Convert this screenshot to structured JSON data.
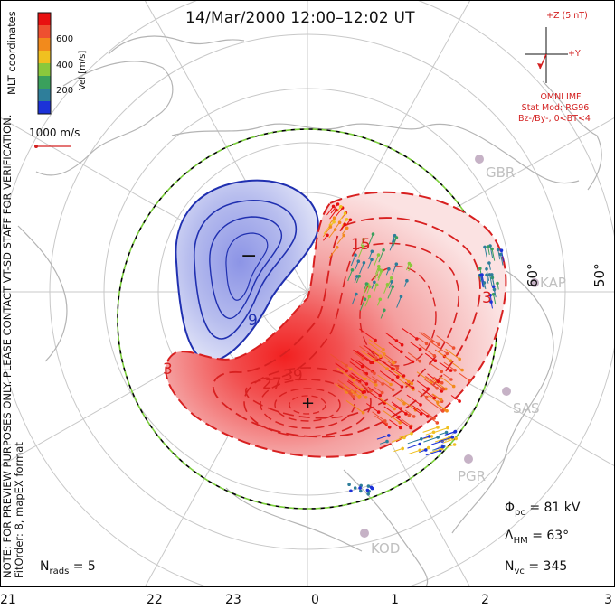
{
  "header": {
    "title": "14/Mar/2000 12:00–12:02 UT"
  },
  "note": {
    "line1": "NOTE: FOR PREVIEW PURPOSES ONLY. PLEASE CONTACT VT-SD STAFF FOR VERIFICATION.",
    "line2": "FitOrder: 8, mapEX format"
  },
  "colorbar": {
    "coord_label": "MLT coordinates",
    "axis_label": "Vel [m/s]",
    "ticks": [
      "600",
      "400",
      "200"
    ],
    "colors": [
      "#e81010",
      "#ee5030",
      "#f28a1c",
      "#f0c020",
      "#8ac83c",
      "#3aa05c",
      "#2e7e9a",
      "#1c32d8"
    ]
  },
  "reference_vector": {
    "label": "1000 m/s",
    "color": "#d32020"
  },
  "imf": {
    "bz_label": "+Z (5 nT)",
    "by_label": "+Y",
    "source": "OMNI IMF",
    "stat_mod": "Stat Mod: RG96",
    "conditions": "Bz-/By-, 0<BT<4",
    "color": "#d32020"
  },
  "stats": {
    "phi_symbol": "Φ",
    "phi_sub": "pc",
    "phi_value": "= 81 kV",
    "lambda_symbol": "Λ",
    "lambda_sub": "HM",
    "lambda_value": "= 63°",
    "nvc_symbol": "N",
    "nvc_sub": "vc",
    "nvc_value": "= 345",
    "nrads_symbol": "N",
    "nrads_sub": "rads",
    "nrads_value": "= 5"
  },
  "latitude_labels": [
    "60°",
    "50°"
  ],
  "mlt_labels": [
    "21",
    "22",
    "23",
    "0",
    "1",
    "2",
    "3"
  ],
  "stations": [
    "GBR",
    "KAP",
    "SAS",
    "PGR",
    "KOD"
  ],
  "potential": {
    "min_marker": "−",
    "max_marker": "+",
    "contour_labels": [
      "3",
      "15",
      "27",
      "39",
      "3",
      "9",
      "3"
    ],
    "positive_color": "#d82020",
    "negative_color": "#2030b0"
  },
  "boundary": {
    "description_color": "#7ccf3c"
  }
}
